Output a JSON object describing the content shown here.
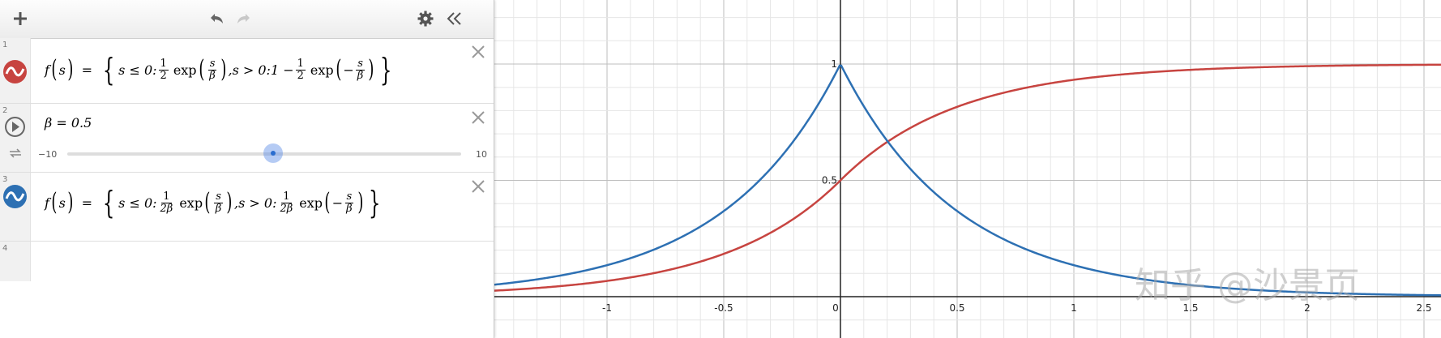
{
  "toolbar": {
    "add_icon": "plus-icon",
    "undo_icon": "undo-icon",
    "redo_icon": "redo-icon",
    "settings_icon": "gear-icon",
    "collapse_icon": "double-chevron-left-icon"
  },
  "expressions": [
    {
      "index": "1",
      "color": "#c74440",
      "parts": {
        "f": "f",
        "s": "s",
        "eq": "=",
        "cond1": "s ≤ 0:",
        "one": "1",
        "two": "2",
        "exp": "exp",
        "beta": "β",
        "cond2": ",s > 0:1 −",
        "neg": "−"
      }
    },
    {
      "index": "2",
      "lhs": "β = 0.5",
      "slider": {
        "min": "−10",
        "max": "10",
        "value": 0.5
      }
    },
    {
      "index": "3",
      "color": "#2d70b3",
      "parts": {
        "f": "f",
        "s": "s",
        "eq": "=",
        "cond1": "s ≤ 0:",
        "one": "1",
        "twobeta": "2β",
        "exp": "exp",
        "beta": "β",
        "cond2": ",s > 0:",
        "neg": "−"
      }
    },
    {
      "index": "4"
    }
  ],
  "graph": {
    "x_ticks": [
      "-1",
      "-0.5",
      "0",
      "0.5",
      "1",
      "1.5",
      "2",
      "2.5"
    ],
    "y_ticks": [
      "0.5",
      "1"
    ],
    "curve_colors": {
      "cdf": "#c74440",
      "pdf": "#2d70b3"
    }
  },
  "watermark": "知乎 @沙景页"
}
